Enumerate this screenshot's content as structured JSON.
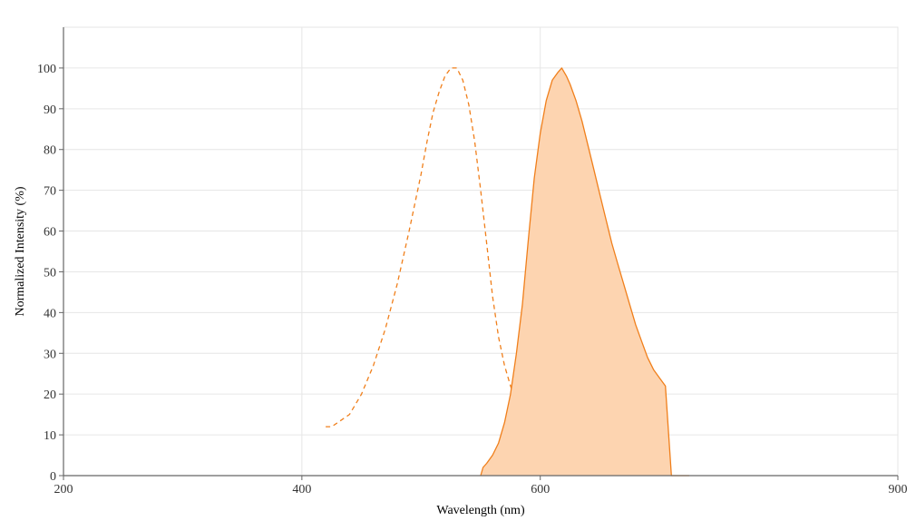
{
  "chart_data": {
    "type": "area",
    "xlabel": "Wavelength (nm)",
    "ylabel": "Normalized Intensity (%)",
    "xlim": [
      200,
      900
    ],
    "ylim": [
      0,
      110
    ],
    "xticks": [
      200,
      400,
      600,
      900
    ],
    "yticks": [
      0,
      10,
      20,
      30,
      40,
      50,
      60,
      70,
      80,
      90,
      100
    ],
    "grid": true,
    "series": [
      {
        "style": "dashed-line",
        "color": "#f07f1b",
        "x": [
          420,
          425,
          430,
          440,
          450,
          460,
          470,
          480,
          490,
          500,
          505,
          510,
          515,
          520,
          525,
          530,
          535,
          540,
          545,
          550,
          555,
          560,
          565,
          570,
          575,
          580,
          585,
          590,
          595,
          600,
          605,
          610,
          620,
          630,
          640,
          650,
          650
        ],
        "y": [
          12,
          12,
          13,
          15,
          20,
          27,
          36,
          47,
          60,
          74,
          82,
          89,
          94,
          98,
          100,
          100,
          97,
          91,
          82,
          70,
          57,
          44,
          34,
          27,
          22,
          18,
          15,
          13,
          11,
          10,
          9,
          9,
          8,
          8,
          8,
          8,
          0
        ]
      },
      {
        "style": "filled-area",
        "color": "#f07f1b",
        "fill": "#fdd4b0",
        "x": [
          550,
          552,
          555,
          560,
          565,
          570,
          575,
          580,
          585,
          590,
          595,
          600,
          605,
          610,
          615,
          618,
          620,
          622,
          625,
          630,
          635,
          640,
          645,
          650,
          655,
          660,
          665,
          670,
          675,
          680,
          685,
          690,
          695,
          700,
          705,
          710,
          715,
          720,
          725,
          725
        ],
        "y": [
          0,
          2,
          3,
          5,
          8,
          13,
          20,
          30,
          42,
          58,
          73,
          84,
          92,
          97,
          99,
          100,
          99,
          98,
          96,
          92,
          87,
          81,
          75,
          69,
          63,
          57,
          52,
          47,
          42,
          37,
          33,
          29,
          26,
          24,
          22,
          0,
          0,
          0,
          0,
          0
        ]
      }
    ]
  }
}
